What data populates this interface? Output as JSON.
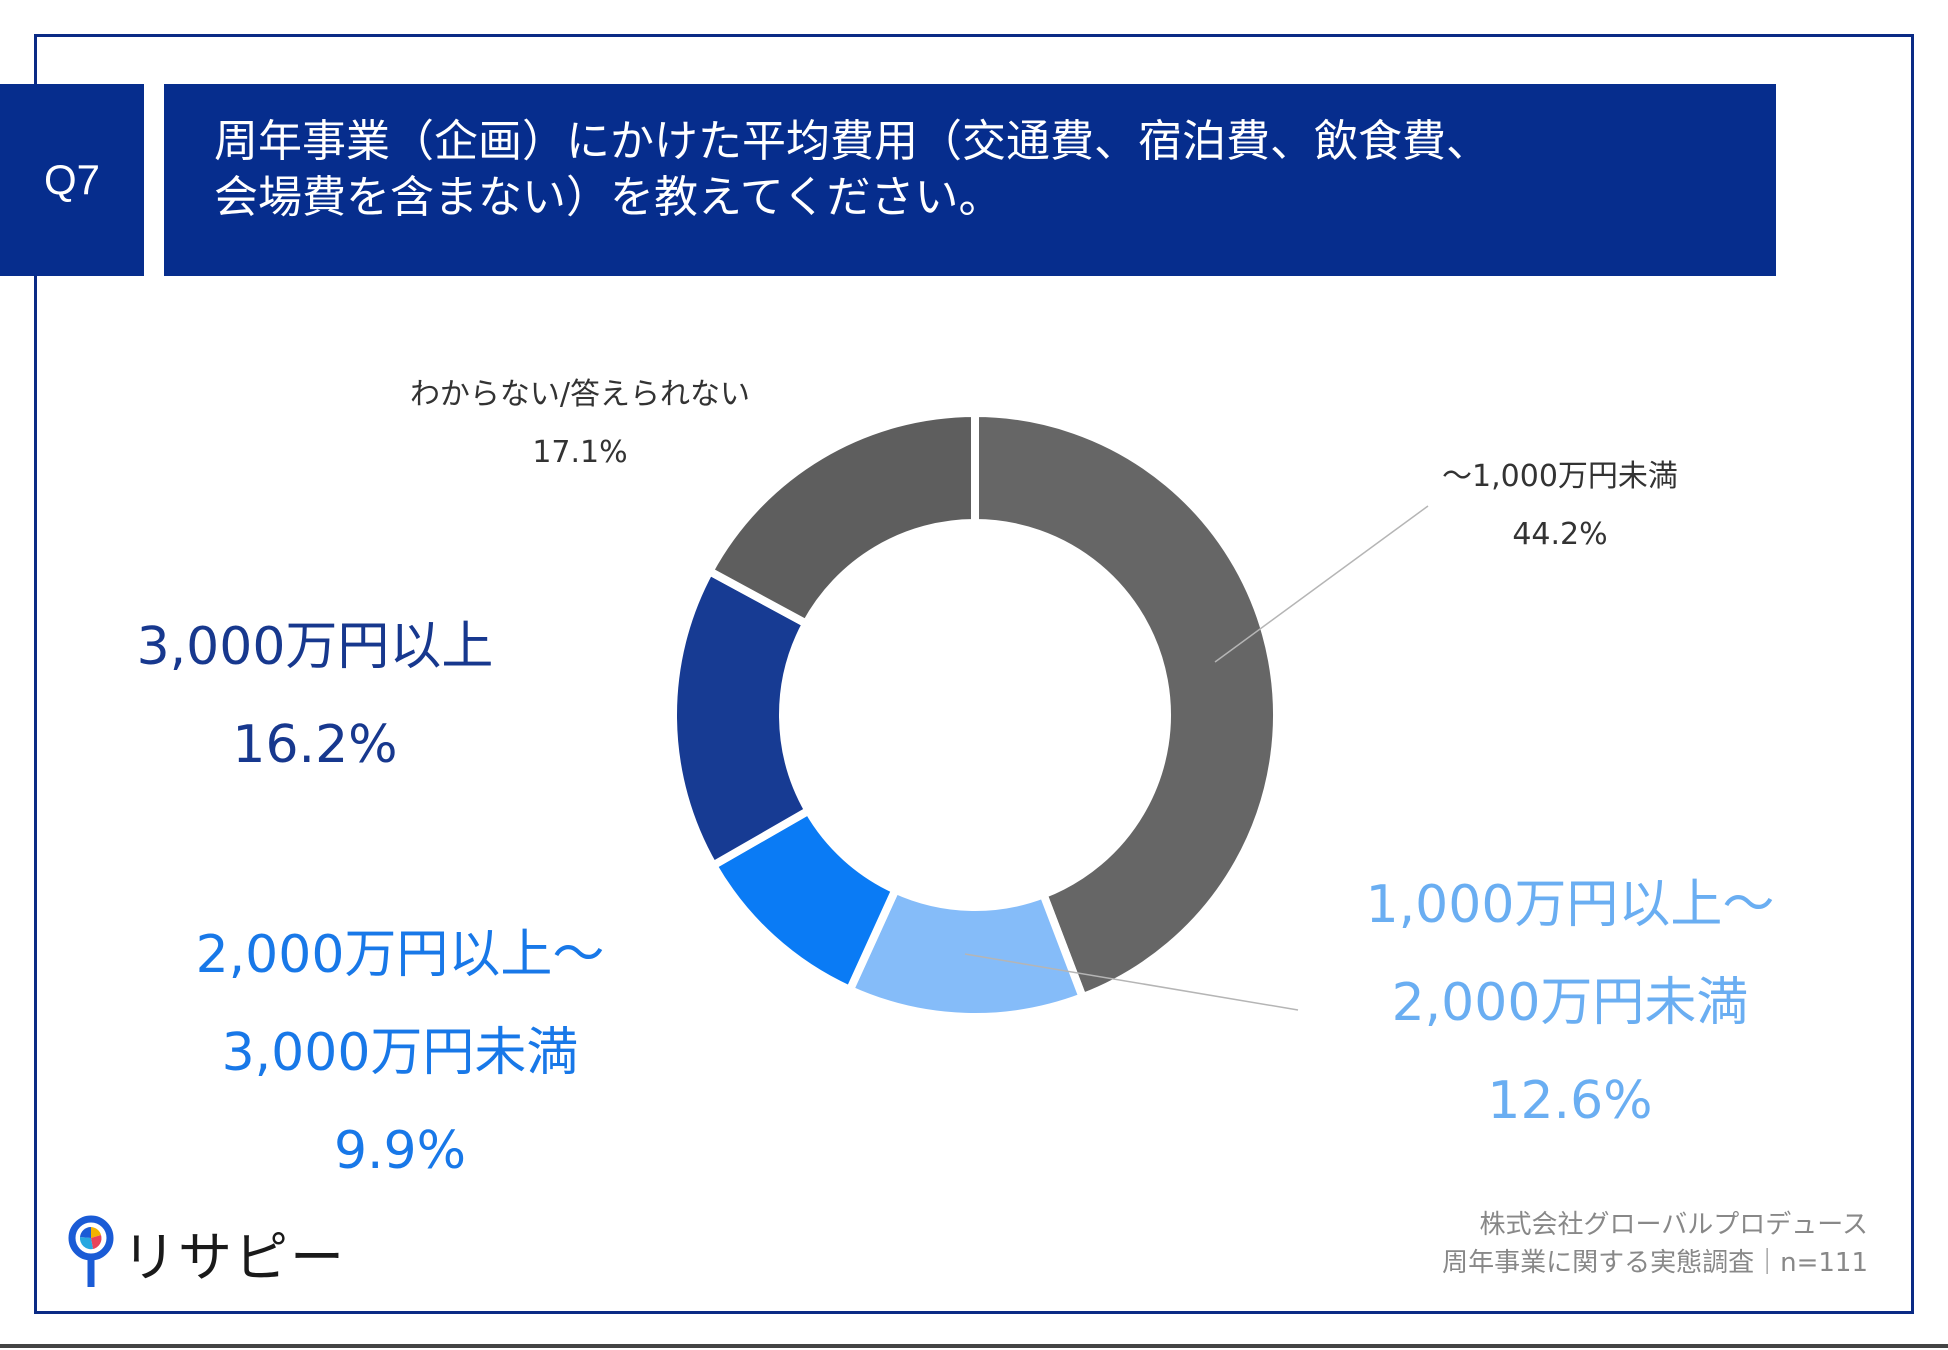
{
  "header": {
    "q_label": "Q7",
    "title_line1": "周年事業（企画）にかけた平均費用（交通費、宿泊費、飲食費、",
    "title_line2": "会場費を含まない）を教えてください。"
  },
  "chart_data": {
    "type": "pie",
    "donut": true,
    "slices": [
      {
        "label": "～1,000万円未満",
        "value": 44.2,
        "value_text": "44.2%",
        "color": "#666666"
      },
      {
        "label": "1,000万円以上～2,000万円未満",
        "value": 12.6,
        "value_text": "12.6%",
        "color": "#85bcf9"
      },
      {
        "label": "2,000万円以上～3,000万円未満",
        "value": 9.9,
        "value_text": "9.9%",
        "color": "#0a7bf5"
      },
      {
        "label": "3,000万円以上",
        "value": 16.2,
        "value_text": "16.2%",
        "color": "#173b93"
      },
      {
        "label": "わからない/答えられない",
        "value": 17.1,
        "value_text": "17.1%",
        "color": "#5e5e5e"
      }
    ],
    "labels_display": {
      "s0_line1": "～1,000万円未満",
      "s1_line1": "1,000万円以上～",
      "s1_line2": "2,000万円未満",
      "s2_line1": "2,000万円以上～",
      "s2_line2": "3,000万円未満",
      "s3_line1": "3,000万円以上",
      "s4_line1": "わからない/答えられない"
    }
  },
  "source": {
    "line1": "株式会社グローバルプロデュース",
    "line2": "周年事業に関する実態調査｜n=111"
  },
  "logo": {
    "text": "リサピー",
    "icon": "pin-logo-icon"
  }
}
